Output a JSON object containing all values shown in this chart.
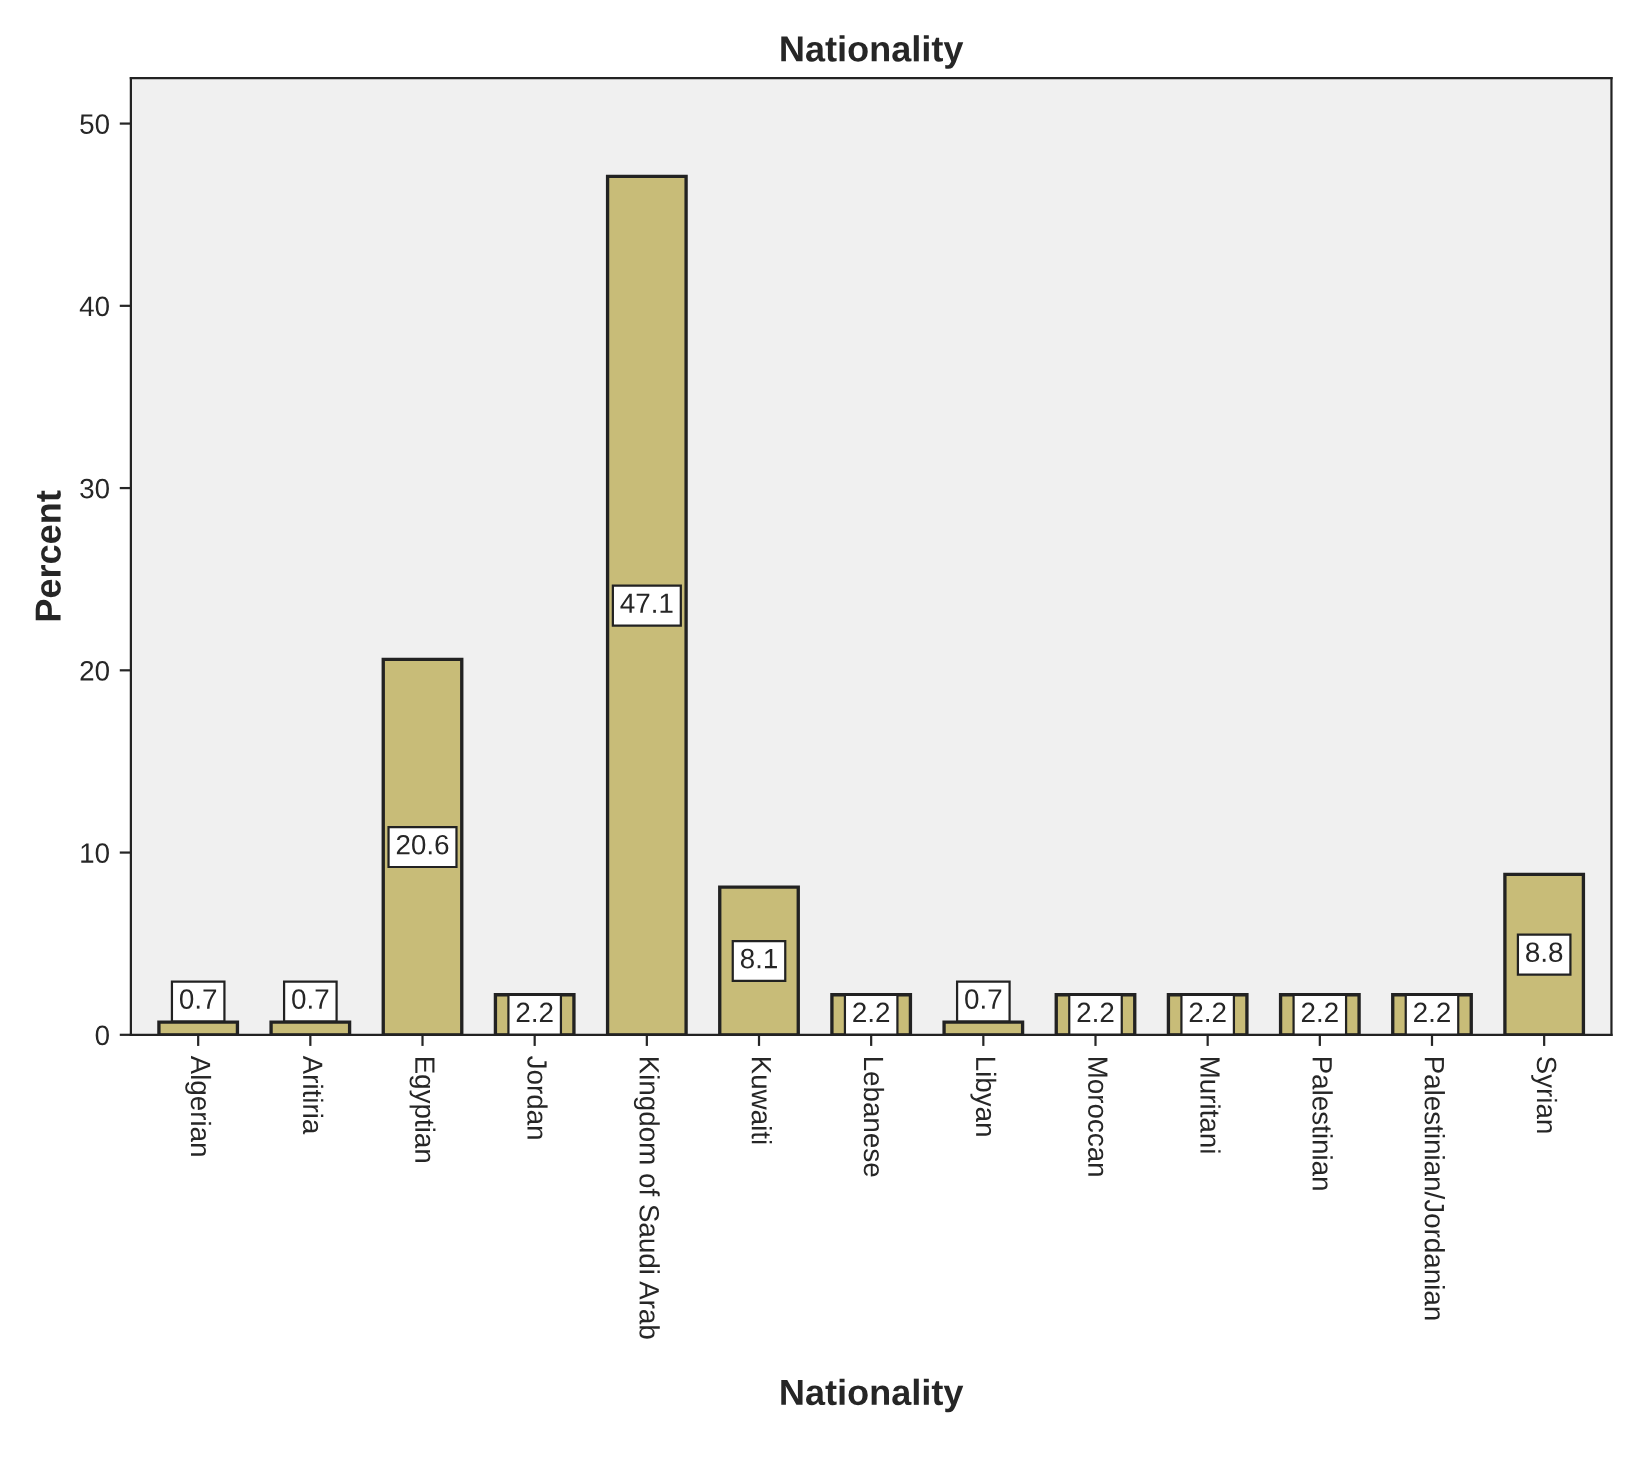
{
  "chart_data": {
    "type": "bar",
    "title": "Nationality",
    "xlabel": "Nationality",
    "ylabel": "Percent",
    "categories": [
      "Algerian",
      "Aritiria",
      "Egyptian",
      "Jordan",
      "Kingdom of Saudi Arab",
      "Kuwaiti",
      "Lebanese",
      "Libyan",
      "Moroccan",
      "Muritani",
      "Palestinian",
      "Palestinian/Jordanian",
      "Syrian"
    ],
    "values": [
      0.7,
      0.7,
      20.6,
      2.2,
      47.1,
      8.1,
      2.2,
      0.7,
      2.2,
      2.2,
      2.2,
      2.2,
      8.8
    ],
    "color": "#c8bc78",
    "ylim": [
      0,
      52.5
    ],
    "yticks": [
      0,
      10,
      20,
      30,
      40,
      50
    ],
    "grid": false,
    "data_labels": true
  }
}
